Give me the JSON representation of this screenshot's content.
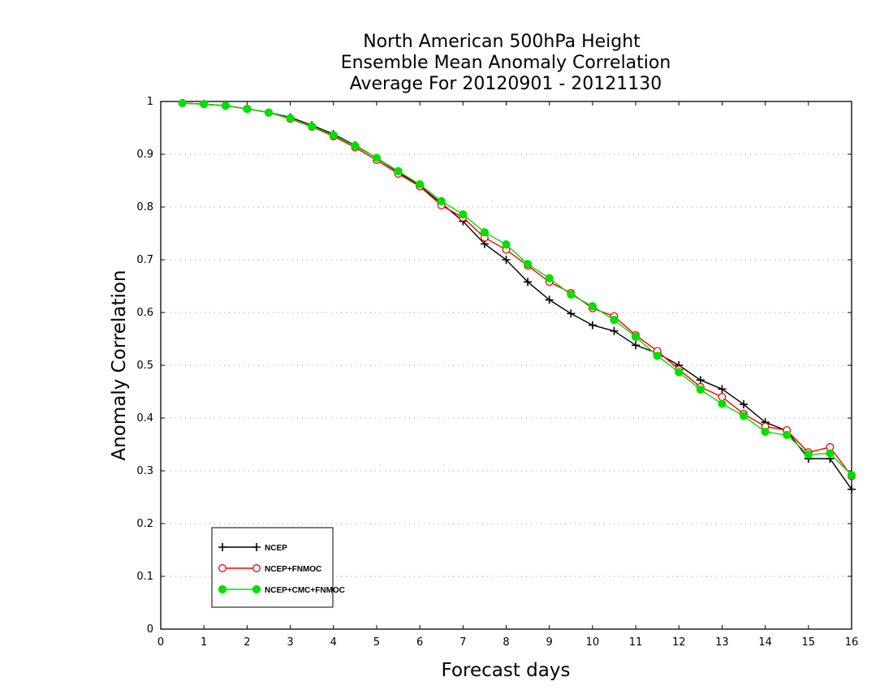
{
  "chart_data": {
    "type": "line",
    "title": [
      "North American 500hPa Height",
      "Ensemble Mean Anomaly Correlation",
      "Average For 20120901 - 20121130"
    ],
    "xlabel": "Forecast days",
    "ylabel": "Anomaly Correlation",
    "xlim": [
      0,
      16
    ],
    "ylim": [
      0,
      1
    ],
    "xticks": [
      "0",
      "1",
      "2",
      "3",
      "4",
      "5",
      "6",
      "7",
      "8",
      "9",
      "10",
      "11",
      "12",
      "13",
      "14",
      "15",
      "16"
    ],
    "yticks": [
      "0",
      "0.1",
      "0.2",
      "0.3",
      "0.4",
      "0.5",
      "0.6",
      "0.7",
      "0.8",
      "0.9",
      "1"
    ],
    "grid": "horizontal-dotted",
    "legend_position": "bottom-left",
    "x": [
      0.5,
      1,
      1.5,
      2,
      2.5,
      3,
      3.5,
      4,
      4.5,
      5,
      5.5,
      6,
      6.5,
      7,
      7.5,
      8,
      8.5,
      9,
      9.5,
      10,
      10.5,
      11,
      11.5,
      12,
      12.5,
      13,
      13.5,
      14,
      14.5,
      15,
      15.5,
      16
    ],
    "series": [
      {
        "name": "NCEP",
        "color": "#000000",
        "marker": "plus",
        "values": [
          0.997,
          0.995,
          0.992,
          0.986,
          0.979,
          0.97,
          0.955,
          0.938,
          0.917,
          0.893,
          0.866,
          0.84,
          0.807,
          0.773,
          0.73,
          0.7,
          0.658,
          0.624,
          0.598,
          0.576,
          0.565,
          0.538,
          0.523,
          0.5,
          0.472,
          0.455,
          0.426,
          0.392,
          0.376,
          0.323,
          0.323,
          0.265
        ]
      },
      {
        "name": "NCEP+FNMOC",
        "color": "#ff0000",
        "marker": "open-circle",
        "values": [
          0.997,
          0.995,
          0.992,
          0.986,
          0.979,
          0.967,
          0.952,
          0.934,
          0.913,
          0.889,
          0.863,
          0.839,
          0.803,
          0.78,
          0.742,
          0.719,
          0.689,
          0.658,
          0.637,
          0.608,
          0.593,
          0.557,
          0.527,
          0.492,
          0.459,
          0.44,
          0.408,
          0.384,
          0.377,
          0.335,
          0.345,
          0.29
        ]
      },
      {
        "name": "NCEP+CMC+FNMOC",
        "color": "#00e000",
        "marker": "filled-circle",
        "values": [
          0.997,
          0.995,
          0.992,
          0.986,
          0.979,
          0.968,
          0.953,
          0.936,
          0.916,
          0.893,
          0.868,
          0.843,
          0.811,
          0.786,
          0.752,
          0.729,
          0.692,
          0.665,
          0.634,
          0.612,
          0.586,
          0.554,
          0.518,
          0.487,
          0.454,
          0.427,
          0.404,
          0.374,
          0.368,
          0.331,
          0.333,
          0.292
        ]
      }
    ]
  }
}
